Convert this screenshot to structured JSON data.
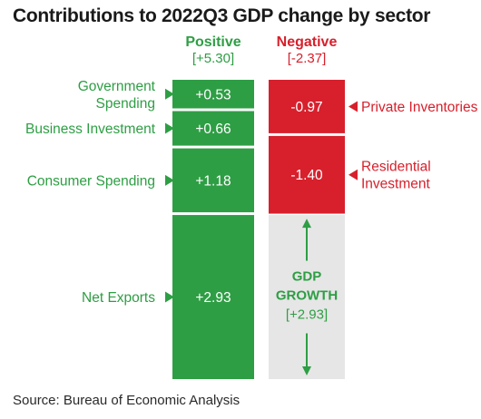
{
  "chart_data": {
    "type": "bar",
    "title": "Contributions to 2022Q3 GDP change by sector",
    "positive": {
      "header": "Positive",
      "total_label": "[+5.30]",
      "total": 5.3,
      "segments": [
        {
          "label_lines": [
            "Government",
            "Spending"
          ],
          "value": 0.53,
          "value_label": "+0.53"
        },
        {
          "label_lines": [
            "Business Investment"
          ],
          "value": 0.66,
          "value_label": "+0.66"
        },
        {
          "label_lines": [
            "Consumer Spending"
          ],
          "value": 1.18,
          "value_label": "+1.18"
        },
        {
          "label_lines": [
            "Net Exports"
          ],
          "value": 2.93,
          "value_label": "+2.93"
        }
      ]
    },
    "negative": {
      "header": "Negative",
      "total_label": "[-2.37]",
      "total": -2.37,
      "segments": [
        {
          "label_lines": [
            "Private Inventories"
          ],
          "value": -0.97,
          "value_label": "-0.97"
        },
        {
          "label_lines": [
            "Residential",
            "Investment"
          ],
          "value": -1.4,
          "value_label": "-1.40"
        }
      ]
    },
    "growth": {
      "label_lines": [
        "GDP",
        "GROWTH"
      ],
      "value_label": "[+2.93]",
      "value": 2.93
    },
    "colors": {
      "positive": "#2e9e44",
      "negative": "#d7202c",
      "growth_fill": "#e6e6e6"
    }
  },
  "source": "Source: Bureau of Economic Analysis"
}
